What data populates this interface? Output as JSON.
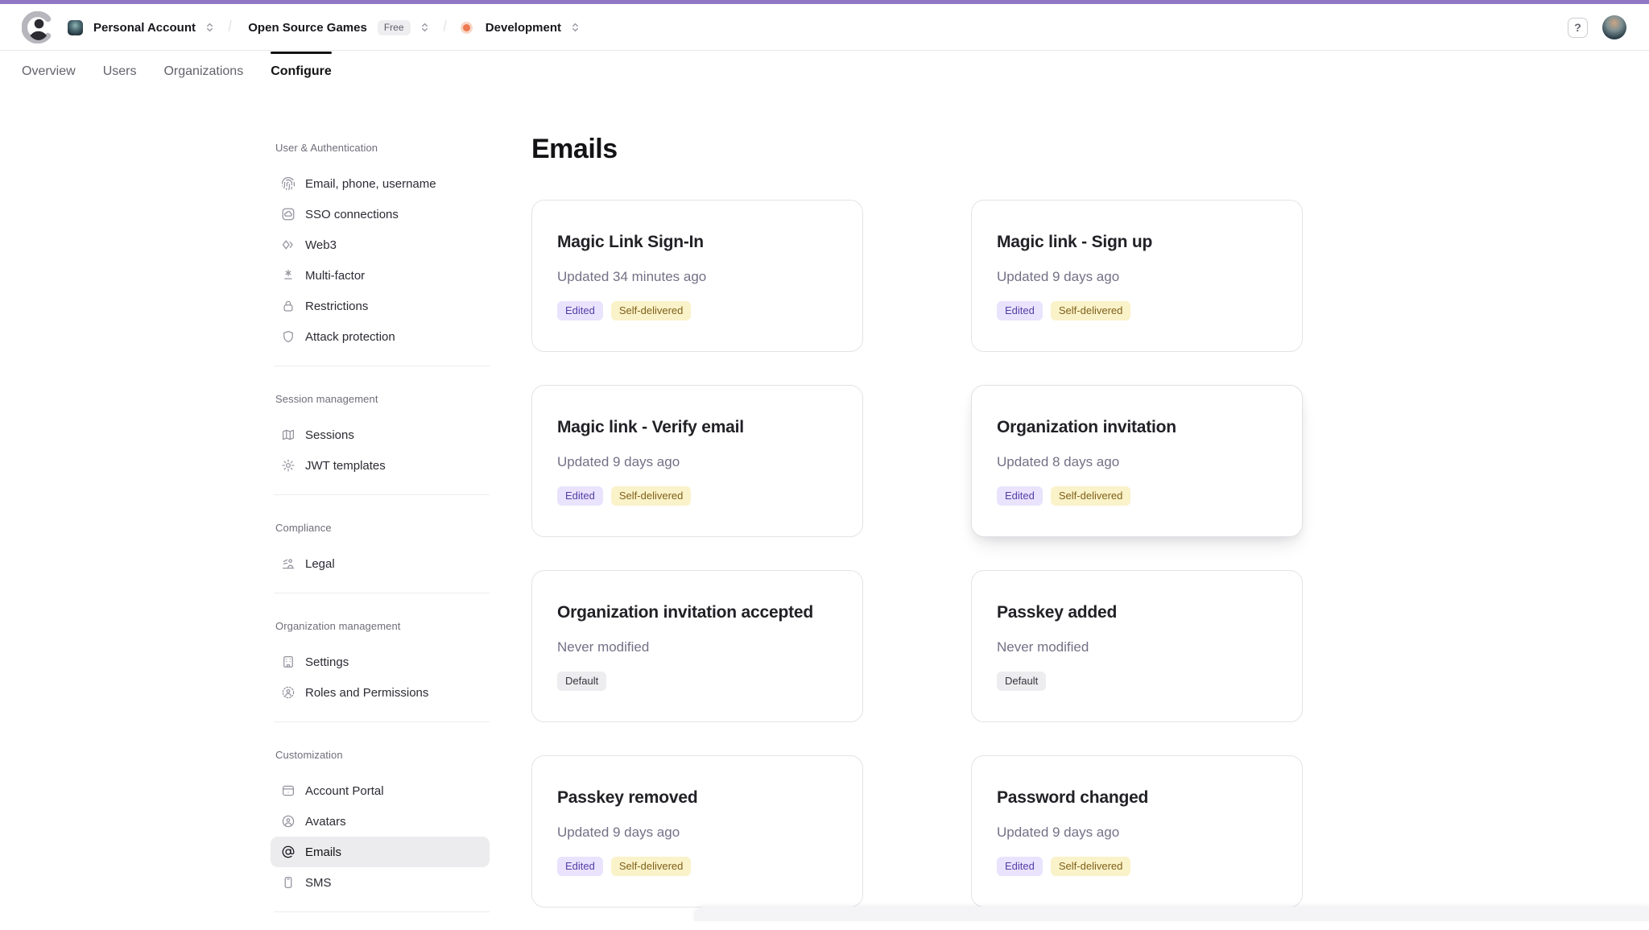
{
  "topbar": {
    "account": "Personal Account",
    "project": "Open Source Games",
    "project_badge": "Free",
    "environment": "Development",
    "help_label": "?"
  },
  "tabs": {
    "active_index": 3,
    "items": [
      {
        "label": "Overview"
      },
      {
        "label": "Users"
      },
      {
        "label": "Organizations"
      },
      {
        "label": "Configure"
      }
    ]
  },
  "sidebar": {
    "sections": [
      {
        "title": "User & Authentication",
        "items": [
          {
            "label": "Email, phone, username",
            "icon": "fingerprint-icon"
          },
          {
            "label": "SSO connections",
            "icon": "sso-cloud-icon"
          },
          {
            "label": "Web3",
            "icon": "web3-icon"
          },
          {
            "label": "Multi-factor",
            "icon": "multifactor-icon"
          },
          {
            "label": "Restrictions",
            "icon": "lock-icon"
          },
          {
            "label": "Attack protection",
            "icon": "shield-icon"
          }
        ]
      },
      {
        "title": "Session management",
        "items": [
          {
            "label": "Sessions",
            "icon": "map-icon"
          },
          {
            "label": "JWT templates",
            "icon": "gear-icon"
          }
        ]
      },
      {
        "title": "Compliance",
        "items": [
          {
            "label": "Legal",
            "icon": "legal-icon"
          }
        ]
      },
      {
        "title": "Organization management",
        "items": [
          {
            "label": "Settings",
            "icon": "building-icon"
          },
          {
            "label": "Roles and Permissions",
            "icon": "roles-icon"
          }
        ]
      },
      {
        "title": "Customization",
        "items": [
          {
            "label": "Account Portal",
            "icon": "browser-icon"
          },
          {
            "label": "Avatars",
            "icon": "avatar-icon"
          },
          {
            "label": "Emails",
            "icon": "at-sign-icon",
            "active": true
          },
          {
            "label": "SMS",
            "icon": "phone-icon"
          }
        ]
      }
    ]
  },
  "main": {
    "title": "Emails",
    "cards": [
      {
        "title": "Magic Link Sign-In",
        "status": "Updated 34 minutes ago",
        "badges": [
          {
            "label": "Edited",
            "type": "edited"
          },
          {
            "label": "Self-delivered",
            "type": "delivered"
          }
        ]
      },
      {
        "title": "Magic link - Sign up",
        "status": "Updated 9 days ago",
        "badges": [
          {
            "label": "Edited",
            "type": "edited"
          },
          {
            "label": "Self-delivered",
            "type": "delivered"
          }
        ]
      },
      {
        "title": "Magic link - Verify email",
        "status": "Updated 9 days ago",
        "badges": [
          {
            "label": "Edited",
            "type": "edited"
          },
          {
            "label": "Self-delivered",
            "type": "delivered"
          }
        ]
      },
      {
        "title": "Organization invitation",
        "status": "Updated 8 days ago",
        "elevated": true,
        "badges": [
          {
            "label": "Edited",
            "type": "edited"
          },
          {
            "label": "Self-delivered",
            "type": "delivered"
          }
        ]
      },
      {
        "title": "Organization invitation accepted",
        "status": "Never modified",
        "badges": [
          {
            "label": "Default",
            "type": "default"
          }
        ]
      },
      {
        "title": "Passkey added",
        "status": "Never modified",
        "badges": [
          {
            "label": "Default",
            "type": "default"
          }
        ]
      },
      {
        "title": "Passkey removed",
        "status": "Updated 9 days ago",
        "badges": [
          {
            "label": "Edited",
            "type": "edited"
          },
          {
            "label": "Self-delivered",
            "type": "delivered"
          }
        ]
      },
      {
        "title": "Password changed",
        "status": "Updated 9 days ago",
        "badges": [
          {
            "label": "Edited",
            "type": "edited"
          },
          {
            "label": "Self-delivered",
            "type": "delivered"
          }
        ]
      }
    ]
  },
  "colors": {
    "top_strip": "#9077c4",
    "env_dot": "#ec7950",
    "badge_edited_bg": "#e9e3fd",
    "badge_edited_text": "#543fa6",
    "badge_delivered_bg": "#faf2c9",
    "badge_delivered_text": "#7f611a",
    "badge_default_bg": "#ededef",
    "sidebar_active_bg": "#ececee"
  }
}
